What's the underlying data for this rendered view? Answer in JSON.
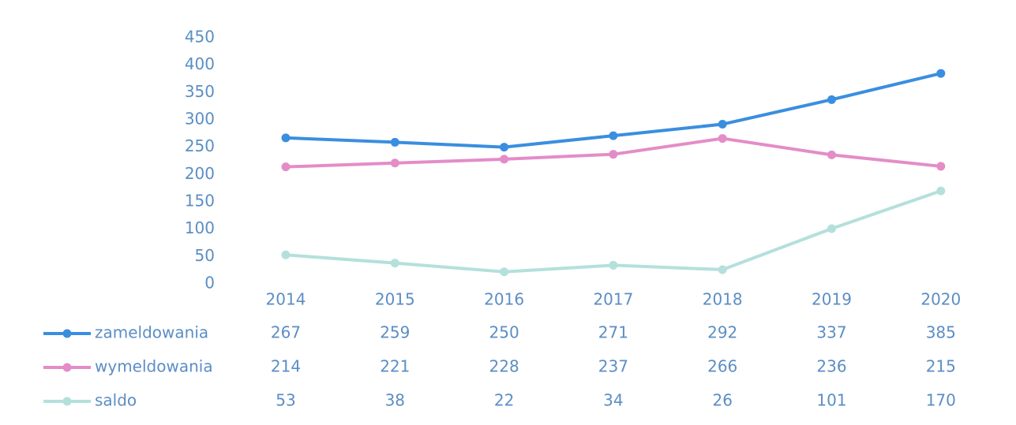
{
  "chart_data": {
    "type": "line",
    "categories": [
      "2014",
      "2015",
      "2016",
      "2017",
      "2018",
      "2019",
      "2020"
    ],
    "series": [
      {
        "name": "zameldowania",
        "color": "#3a8ee0",
        "values": [
          267,
          259,
          250,
          271,
          292,
          337,
          385
        ]
      },
      {
        "name": "wymeldowania",
        "color": "#e48cc8",
        "values": [
          214,
          221,
          228,
          237,
          266,
          236,
          215
        ]
      },
      {
        "name": "saldo",
        "color": "#b4e0dc",
        "values": [
          53,
          38,
          22,
          34,
          26,
          101,
          170
        ]
      }
    ],
    "ylim": [
      0,
      450
    ],
    "yticks": [
      0,
      50,
      100,
      150,
      200,
      250,
      300,
      350,
      400,
      450
    ],
    "grid": false
  }
}
